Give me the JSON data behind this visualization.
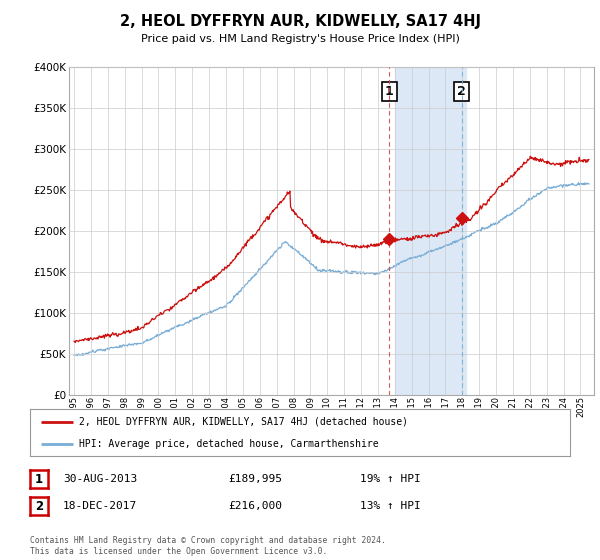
{
  "title": "2, HEOL DYFFRYN AUR, KIDWELLY, SA17 4HJ",
  "subtitle": "Price paid vs. HM Land Registry's House Price Index (HPI)",
  "ylabel_ticks": [
    "£0",
    "£50K",
    "£100K",
    "£150K",
    "£200K",
    "£250K",
    "£300K",
    "£350K",
    "£400K"
  ],
  "ytick_vals": [
    0,
    50000,
    100000,
    150000,
    200000,
    250000,
    300000,
    350000,
    400000
  ],
  "ylim": [
    0,
    400000
  ],
  "xlim_start": 1994.7,
  "xlim_end": 2025.8,
  "sale1_date": 2013.66,
  "sale1_price": 189995,
  "sale1_label": "1",
  "sale2_date": 2017.96,
  "sale2_price": 216000,
  "sale2_label": "2",
  "shade_start": 2014.0,
  "shade_end": 2018.2,
  "red_line_color": "#cc1111",
  "blue_line_color": "#7aaed6",
  "shade_color": "#dce8f5",
  "dashed_red_color": "#dd4444",
  "dashed_blue_color": "#7aaed6",
  "legend_line1": "2, HEOL DYFFRYN AUR, KIDWELLY, SA17 4HJ (detached house)",
  "legend_line2": "HPI: Average price, detached house, Carmarthenshire",
  "table_row1": [
    "1",
    "30-AUG-2013",
    "£189,995",
    "19% ↑ HPI"
  ],
  "table_row2": [
    "2",
    "18-DEC-2017",
    "£216,000",
    "13% ↑ HPI"
  ],
  "footnote": "Contains HM Land Registry data © Crown copyright and database right 2024.\nThis data is licensed under the Open Government Licence v3.0.",
  "background_color": "#ffffff",
  "grid_color": "#cccccc"
}
